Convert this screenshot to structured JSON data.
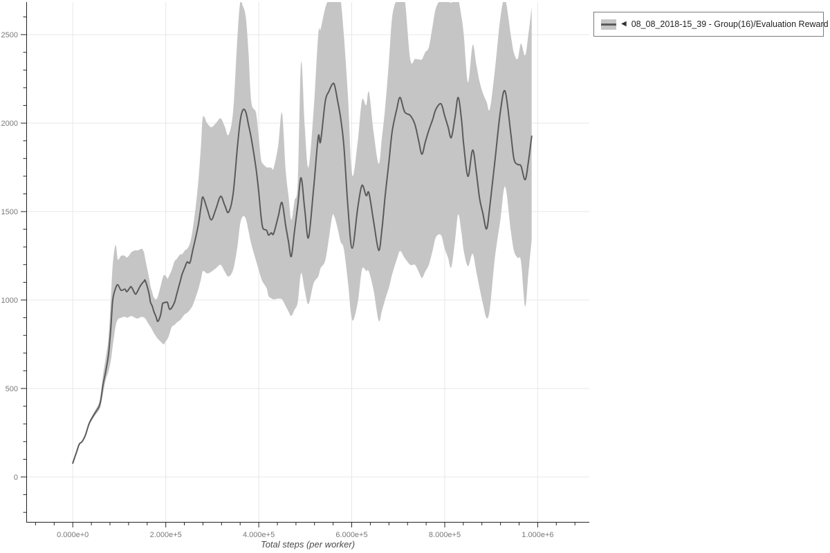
{
  "legend": {
    "collapse_marker": "◀",
    "label": "08_08_2018-15_39 - Group(16)/Evaluation Reward",
    "border_color": "#7a7a7a"
  },
  "chart_data": {
    "type": "line",
    "title": "",
    "xlabel": "Total steps (per worker)",
    "ylabel": "",
    "grid": true,
    "legend_position": "outside-top-right",
    "x_range": [
      -100000,
      1111000
    ],
    "y_range": [
      -254,
      2684
    ],
    "x_minor_step": 40000,
    "y_minor_step": 100,
    "x_ticks": [
      {
        "value": 0,
        "label": "0.000e+0"
      },
      {
        "value": 200000,
        "label": "2.000e+5"
      },
      {
        "value": 400000,
        "label": "4.000e+5"
      },
      {
        "value": 600000,
        "label": "6.000e+5"
      },
      {
        "value": 800000,
        "label": "8.000e+5"
      },
      {
        "value": 1000000,
        "label": "1.000e+6"
      }
    ],
    "y_ticks": [
      {
        "value": 0,
        "label": "0"
      },
      {
        "value": 500,
        "label": "500"
      },
      {
        "value": 1000,
        "label": "1000"
      },
      {
        "value": 1500,
        "label": "1500"
      },
      {
        "value": 2000,
        "label": "2000"
      },
      {
        "value": 2500,
        "label": "2500"
      }
    ],
    "colors": {
      "band": "#c5c5c5",
      "line": "#5a5a5a",
      "grid": "#e7e7e7",
      "axis": "#222222",
      "tick_label": "#787878",
      "axis_title": "#4a4a4a"
    },
    "series": [
      {
        "name": "08_08_2018-15_39 - Group(16)/Evaluation Reward",
        "color": "#5a5a5a",
        "band_color": "#c5c5c5",
        "points_format": [
          "steps",
          "mean",
          "band_low",
          "band_high"
        ],
        "points": [
          [
            0,
            78,
            78,
            78
          ],
          [
            8000,
            140,
            138,
            142
          ],
          [
            14000,
            185,
            181,
            189
          ],
          [
            20000,
            200,
            195,
            205
          ],
          [
            27000,
            235,
            228,
            242
          ],
          [
            35000,
            300,
            290,
            310
          ],
          [
            43000,
            340,
            328,
            352
          ],
          [
            50000,
            370,
            355,
            385
          ],
          [
            56000,
            395,
            375,
            415
          ],
          [
            60000,
            430,
            400,
            462
          ],
          [
            65000,
            520,
            470,
            575
          ],
          [
            71000,
            598,
            548,
            676
          ],
          [
            77000,
            697,
            598,
            793
          ],
          [
            82000,
            846,
            660,
            1010
          ],
          [
            86000,
            1000,
            740,
            1200
          ],
          [
            92000,
            1066,
            850,
            1312
          ],
          [
            97000,
            1086,
            890,
            1230
          ],
          [
            104000,
            1055,
            900,
            1250
          ],
          [
            112000,
            1062,
            905,
            1250
          ],
          [
            116000,
            1047,
            900,
            1240
          ],
          [
            122000,
            1066,
            905,
            1255
          ],
          [
            126000,
            1074,
            910,
            1270
          ],
          [
            134000,
            1035,
            900,
            1281
          ],
          [
            138000,
            1043,
            895,
            1280
          ],
          [
            144000,
            1074,
            900,
            1285
          ],
          [
            149000,
            1094,
            905,
            1289
          ],
          [
            153000,
            1105,
            900,
            1270
          ],
          [
            156000,
            1109,
            895,
            1230
          ],
          [
            164000,
            1035,
            860,
            1125
          ],
          [
            167000,
            988,
            850,
            1080
          ],
          [
            171000,
            965,
            830,
            1043
          ],
          [
            174000,
            938,
            815,
            1016
          ],
          [
            179000,
            906,
            795,
            1004
          ],
          [
            183000,
            879,
            780,
            1020
          ],
          [
            189000,
            918,
            765,
            1080
          ],
          [
            193000,
            977,
            754,
            1120
          ],
          [
            196000,
            984,
            750,
            1141
          ],
          [
            201000,
            988,
            770,
            1133
          ],
          [
            204000,
            984,
            781,
            1121
          ],
          [
            208000,
            949,
            808,
            1141
          ],
          [
            213000,
            957,
            848,
            1172
          ],
          [
            219000,
            988,
            859,
            1219
          ],
          [
            223000,
            1027,
            871,
            1230
          ],
          [
            231000,
            1105,
            887,
            1258
          ],
          [
            235000,
            1145,
            900,
            1258
          ],
          [
            241000,
            1184,
            920,
            1280
          ],
          [
            246000,
            1215,
            928,
            1290
          ],
          [
            252000,
            1211,
            945,
            1320
          ],
          [
            258000,
            1280,
            970,
            1400
          ],
          [
            265000,
            1360,
            1020,
            1540
          ],
          [
            271000,
            1440,
            1070,
            1700
          ],
          [
            276000,
            1530,
            1120,
            1880
          ],
          [
            280000,
            1582,
            1164,
            2035
          ],
          [
            289000,
            1515,
            1150,
            2000
          ],
          [
            298000,
            1453,
            1160,
            1977
          ],
          [
            308000,
            1515,
            1180,
            2000
          ],
          [
            318000,
            1586,
            1199,
            2027
          ],
          [
            327000,
            1535,
            1160,
            1980
          ],
          [
            335000,
            1496,
            1133,
            1934
          ],
          [
            345000,
            1602,
            1172,
            2070
          ],
          [
            354000,
            1863,
            1300,
            2480
          ],
          [
            360000,
            2010,
            1430,
            2680
          ],
          [
            366000,
            2074,
            1473,
            2660
          ],
          [
            372000,
            2063,
            1460,
            2600
          ],
          [
            378000,
            1990,
            1390,
            2400
          ],
          [
            384000,
            1914,
            1316,
            2121
          ],
          [
            394000,
            1745,
            1223,
            2058
          ],
          [
            400000,
            1610,
            1170,
            1920
          ],
          [
            405000,
            1473,
            1125,
            1797
          ],
          [
            409000,
            1406,
            1100,
            1770
          ],
          [
            417000,
            1394,
            1066,
            1750
          ],
          [
            421000,
            1367,
            1023,
            1750
          ],
          [
            427000,
            1380,
            1010,
            1748
          ],
          [
            432000,
            1375,
            1004,
            1746
          ],
          [
            442000,
            1473,
            1008,
            1875
          ],
          [
            450000,
            1551,
            1004,
            2058
          ],
          [
            458000,
            1418,
            965,
            1730
          ],
          [
            464000,
            1330,
            935,
            1590
          ],
          [
            470000,
            1246,
            910,
            1453
          ],
          [
            477000,
            1390,
            945,
            1560
          ],
          [
            484000,
            1535,
            988,
            1668
          ],
          [
            491000,
            1691,
            1152,
            2343
          ],
          [
            499000,
            1512,
            1055,
            1980
          ],
          [
            507000,
            1352,
            977,
            1750
          ],
          [
            518000,
            1629,
            1094,
            2070
          ],
          [
            528000,
            1922,
            1133,
            2500
          ],
          [
            533000,
            1895,
            1180,
            2531
          ],
          [
            543000,
            2121,
            1223,
            2650
          ],
          [
            551000,
            2180,
            1350,
            2700
          ],
          [
            558000,
            2219,
            1473,
            2700
          ],
          [
            563000,
            2215,
            1470,
            2700
          ],
          [
            570000,
            2120,
            1400,
            2700
          ],
          [
            576000,
            2031,
            1330,
            2700
          ],
          [
            583000,
            1875,
            1289,
            2500
          ],
          [
            592000,
            1523,
            1100,
            2150
          ],
          [
            601000,
            1293,
            887,
            1707
          ],
          [
            613000,
            1523,
            988,
            1900
          ],
          [
            622000,
            1648,
            1172,
            2129
          ],
          [
            631000,
            1590,
            1165,
            2100
          ],
          [
            637000,
            1605,
            1160,
            2176
          ],
          [
            647000,
            1445,
            1055,
            1950
          ],
          [
            658000,
            1281,
            883,
            1770
          ],
          [
            665000,
            1400,
            940,
            1920
          ],
          [
            672000,
            1590,
            1004,
            2090
          ],
          [
            680000,
            1780,
            1070,
            2350
          ],
          [
            687000,
            1953,
            1145,
            2600
          ],
          [
            697000,
            2080,
            1230,
            2700
          ],
          [
            704000,
            2145,
            1277,
            2700
          ],
          [
            714000,
            2063,
            1238,
            2700
          ],
          [
            726000,
            2043,
            1199,
            2360
          ],
          [
            736000,
            1992,
            1199,
            2363
          ],
          [
            744000,
            1900,
            1160,
            2360
          ],
          [
            751000,
            1824,
            1125,
            2360
          ],
          [
            758000,
            1890,
            1160,
            2400
          ],
          [
            766000,
            1961,
            1200,
            2430
          ],
          [
            774000,
            2020,
            1280,
            2550
          ],
          [
            781000,
            2078,
            1355,
            2650
          ],
          [
            792000,
            2109,
            1367,
            2700
          ],
          [
            800000,
            2040,
            1290,
            2700
          ],
          [
            807000,
            1980,
            1240,
            2690
          ],
          [
            814000,
            1918,
            1184,
            2680
          ],
          [
            822000,
            2030,
            1330,
            2700
          ],
          [
            829000,
            2145,
            1484,
            2700
          ],
          [
            836000,
            2020,
            1380,
            2600
          ],
          [
            841000,
            1875,
            1277,
            2500
          ],
          [
            850000,
            1699,
            1191,
            2230
          ],
          [
            860000,
            1848,
            1262,
            2441
          ],
          [
            868000,
            1720,
            1160,
            2330
          ],
          [
            875000,
            1574,
            1066,
            2234
          ],
          [
            882000,
            1490,
            980,
            2170
          ],
          [
            890000,
            1402,
            898,
            2120
          ],
          [
            897000,
            1530,
            950,
            2080
          ],
          [
            908000,
            1785,
            1238,
            2300
          ],
          [
            920000,
            2070,
            1457,
            2600
          ],
          [
            930000,
            2180,
            1641,
            2700
          ],
          [
            942000,
            1945,
            1395,
            2500
          ],
          [
            949000,
            1797,
            1277,
            2395
          ],
          [
            957000,
            1766,
            1238,
            2363
          ],
          [
            964000,
            1758,
            1219,
            2449
          ],
          [
            973000,
            1680,
            965,
            2383
          ],
          [
            980000,
            1780,
            1150,
            2500
          ],
          [
            987000,
            1926,
            1340,
            2656
          ]
        ]
      }
    ]
  }
}
